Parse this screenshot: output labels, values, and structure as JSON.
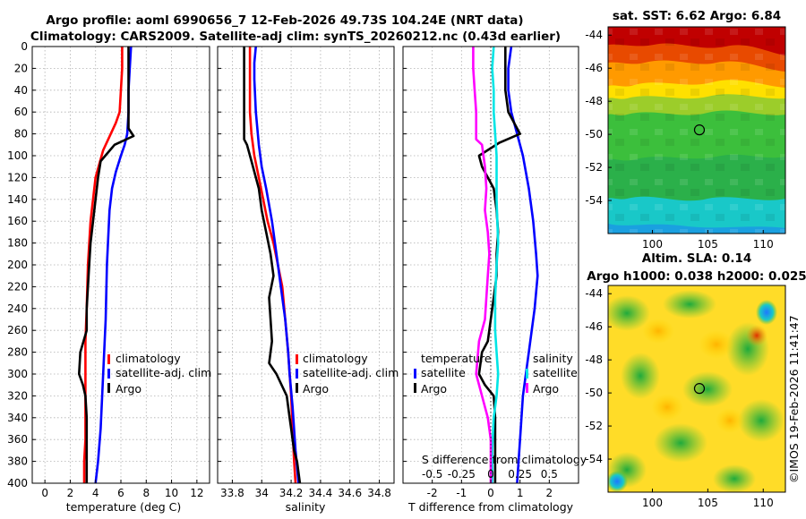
{
  "title": {
    "line1": "Argo profile: aoml 6990656_7 12-Feb-2026 49.73S 104.24E (NRT data)",
    "line2": "Climatology: CARS2009. Satellite-adj clim: synTS_20260212.nc (0.43d earlier)"
  },
  "copyright": "©IMOS 19-Feb-2026 11:41:47",
  "colors": {
    "climatology": "#ff0000",
    "satellite": "#0000ff",
    "argo": "#000000",
    "temperature_diff": "#ff00ff",
    "salinity_diff": "#00e5e5"
  },
  "chart_data": [
    {
      "id": "temperature",
      "type": "line",
      "xlabel": "temperature (deg C)",
      "ylabel": "",
      "xlim": [
        -1,
        13
      ],
      "ylim": [
        400,
        0
      ],
      "xticks": [
        0,
        2,
        4,
        6,
        8,
        10,
        12
      ],
      "yticks": [
        0,
        20,
        40,
        60,
        80,
        100,
        120,
        140,
        160,
        180,
        200,
        220,
        240,
        260,
        280,
        300,
        320,
        340,
        360,
        380,
        400
      ],
      "legend": [
        "climatology",
        "satellite-adj. clim",
        "Argo"
      ],
      "series": [
        {
          "name": "climatology",
          "color": "#ff0000",
          "x": [
            6.1,
            6.1,
            6.0,
            5.9,
            5.6,
            5.2,
            4.6,
            4.0,
            3.6,
            3.4,
            3.3,
            3.2,
            3.2,
            3.2,
            3.2,
            3.2,
            3.1,
            3.1
          ],
          "y": [
            0,
            20,
            40,
            60,
            70,
            80,
            95,
            120,
            160,
            200,
            240,
            270,
            300,
            320,
            340,
            360,
            380,
            400
          ]
        },
        {
          "name": "satellite-adj. clim",
          "color": "#0000ff",
          "x": [
            6.8,
            6.7,
            6.6,
            6.6,
            6.5,
            6.3,
            6.0,
            5.6,
            5.3,
            5.1,
            4.9,
            4.8,
            4.6,
            4.4,
            4.2,
            4.0
          ],
          "y": [
            0,
            20,
            40,
            60,
            80,
            90,
            100,
            115,
            130,
            150,
            200,
            250,
            300,
            350,
            380,
            400
          ]
        },
        {
          "name": "Argo",
          "color": "#000000",
          "x": [
            6.6,
            6.6,
            6.6,
            6.6,
            6.6,
            7.0,
            5.5,
            4.4,
            4.2,
            4.0,
            3.8,
            3.6,
            3.5,
            3.4,
            3.3,
            3.3,
            2.8,
            2.7,
            3.0,
            3.2,
            3.3,
            3.3,
            3.3,
            3.3,
            3.3,
            3.3
          ],
          "y": [
            0,
            20,
            40,
            60,
            75,
            82,
            90,
            105,
            120,
            140,
            160,
            180,
            200,
            220,
            240,
            260,
            280,
            300,
            310,
            320,
            340,
            360,
            370,
            380,
            390,
            400
          ]
        }
      ]
    },
    {
      "id": "salinity",
      "type": "line",
      "xlabel": "salinity",
      "ylabel": "",
      "xlim": [
        33.7,
        34.9
      ],
      "ylim": [
        400,
        0
      ],
      "xticks": [
        33.8,
        34,
        34.2,
        34.4,
        34.6,
        34.8
      ],
      "xticklabels": [
        "33.8",
        "34",
        "34.2",
        "34.4",
        "34.6",
        "34.8"
      ],
      "legend": [
        "climatology",
        "satellite-adj. clim",
        "Argo"
      ],
      "series": [
        {
          "name": "climatology",
          "color": "#ff0000",
          "x": [
            33.92,
            33.92,
            33.92,
            33.92,
            33.93,
            33.95,
            33.98,
            34.01,
            34.04,
            34.08,
            34.11,
            34.14,
            34.16,
            34.18,
            34.2,
            34.21,
            34.22,
            34.23
          ],
          "y": [
            0,
            20,
            40,
            60,
            80,
            100,
            120,
            140,
            160,
            180,
            200,
            220,
            250,
            280,
            320,
            350,
            380,
            400
          ]
        },
        {
          "name": "satellite-adj. clim",
          "color": "#0000ff",
          "x": [
            33.96,
            33.95,
            33.95,
            33.96,
            33.98,
            34.0,
            34.03,
            34.07,
            34.1,
            34.13,
            34.16,
            34.18,
            34.19,
            34.21,
            34.23,
            34.25
          ],
          "y": [
            0,
            15,
            30,
            60,
            90,
            110,
            130,
            160,
            190,
            220,
            250,
            280,
            300,
            330,
            370,
            400
          ]
        },
        {
          "name": "Argo",
          "color": "#000000",
          "x": [
            33.88,
            33.88,
            33.88,
            33.88,
            33.88,
            33.9,
            33.93,
            33.98,
            34.0,
            34.03,
            34.06,
            34.08,
            34.05,
            34.06,
            34.07,
            34.05,
            34.1,
            34.17,
            34.19,
            34.2,
            34.21,
            34.22,
            34.24,
            34.25,
            34.26
          ],
          "y": [
            0,
            20,
            40,
            60,
            85,
            90,
            105,
            130,
            150,
            170,
            190,
            210,
            230,
            250,
            270,
            290,
            300,
            320,
            340,
            350,
            360,
            370,
            380,
            390,
            400
          ]
        }
      ]
    },
    {
      "id": "difference",
      "type": "line",
      "xlabel": "T difference from climatology",
      "xlabel2": "S difference from climatology",
      "ylabel": "",
      "xlim": [
        -3,
        3
      ],
      "ylim": [
        400,
        0
      ],
      "xticks": [
        -2,
        -1,
        0,
        1,
        2
      ],
      "xticklabels": [
        "-2",
        "-1",
        "0",
        "1",
        "2"
      ],
      "xticks2": [
        -2,
        -1,
        0,
        1,
        2
      ],
      "xticklabels2": [
        "-0.5",
        "-0.25",
        "0",
        "0.25",
        "0.5"
      ],
      "legend_left": {
        "title": "temperature",
        "entries": [
          "satellite",
          "Argo"
        ]
      },
      "legend_right": {
        "title": "salinity",
        "entries": [
          "satellite",
          "Argo"
        ]
      },
      "series": [
        {
          "name": "temperature satellite",
          "color": "#0000ff",
          "x": [
            0.7,
            0.6,
            0.6,
            0.7,
            0.9,
            1.1,
            1.3,
            1.45,
            1.55,
            1.6,
            1.5,
            1.3,
            1.1,
            1.0,
            0.9
          ],
          "y": [
            0,
            20,
            40,
            60,
            80,
            100,
            130,
            160,
            190,
            210,
            240,
            280,
            320,
            360,
            400
          ]
        },
        {
          "name": "temperature Argo",
          "color": "#000000",
          "x": [
            0.5,
            0.5,
            0.5,
            0.6,
            1.0,
            0.3,
            -0.4,
            -0.3,
            0.1,
            0.2,
            0.25,
            0.2,
            0.2,
            0.1,
            0.0,
            -0.1,
            -0.3,
            -0.4,
            -0.2,
            0.1,
            0.15,
            0.15,
            0.15,
            0.15
          ],
          "y": [
            0,
            20,
            40,
            60,
            80,
            88,
            100,
            110,
            130,
            150,
            170,
            190,
            210,
            230,
            250,
            270,
            280,
            300,
            310,
            320,
            340,
            360,
            380,
            400
          ]
        },
        {
          "name": "salinity satellite",
          "color": "#00e5e5",
          "x": [
            0.1,
            0.05,
            0.1,
            0.1,
            0.15,
            0.2,
            0.2,
            0.25,
            0.2,
            0.15,
            0.15,
            0.2,
            0.25,
            0.2,
            0.1,
            0.05,
            0.05
          ],
          "y": [
            0,
            20,
            40,
            60,
            80,
            100,
            140,
            180,
            200,
            230,
            260,
            280,
            300,
            320,
            340,
            370,
            400
          ]
        },
        {
          "name": "salinity Argo",
          "color": "#ff00ff",
          "x": [
            -0.6,
            -0.6,
            -0.55,
            -0.5,
            -0.5,
            -0.3,
            -0.2,
            -0.15,
            -0.2,
            -0.1,
            -0.05,
            -0.1,
            -0.15,
            -0.2,
            -0.4,
            -0.5,
            -0.3,
            -0.1,
            0.0,
            0.0,
            0.0
          ],
          "y": [
            0,
            20,
            40,
            60,
            85,
            90,
            110,
            130,
            150,
            170,
            190,
            210,
            230,
            250,
            270,
            300,
            320,
            340,
            360,
            380,
            400
          ]
        }
      ]
    },
    {
      "id": "sst_map",
      "type": "heatmap",
      "title": "sat. SST: 6.62 Argo: 6.84",
      "xlim": [
        96,
        112
      ],
      "ylim": [
        -56,
        -43.5
      ],
      "xticks": [
        100,
        105,
        110
      ],
      "yticks": [
        -44,
        -46,
        -48,
        -50,
        -52,
        -54
      ],
      "marker": {
        "lon": 104.24,
        "lat": -49.73
      }
    },
    {
      "id": "sla_map",
      "type": "heatmap",
      "title": "Altim. SLA: 0.14",
      "subtitle": "Argo h1000: 0.038 h2000: 0.025",
      "xlim": [
        96,
        112
      ],
      "ylim": [
        -56,
        -43.5
      ],
      "xticks": [
        100,
        105,
        110
      ],
      "yticks": [
        -44,
        -46,
        -48,
        -50,
        -52,
        -54
      ],
      "marker": {
        "lon": 104.24,
        "lat": -49.73
      }
    }
  ]
}
